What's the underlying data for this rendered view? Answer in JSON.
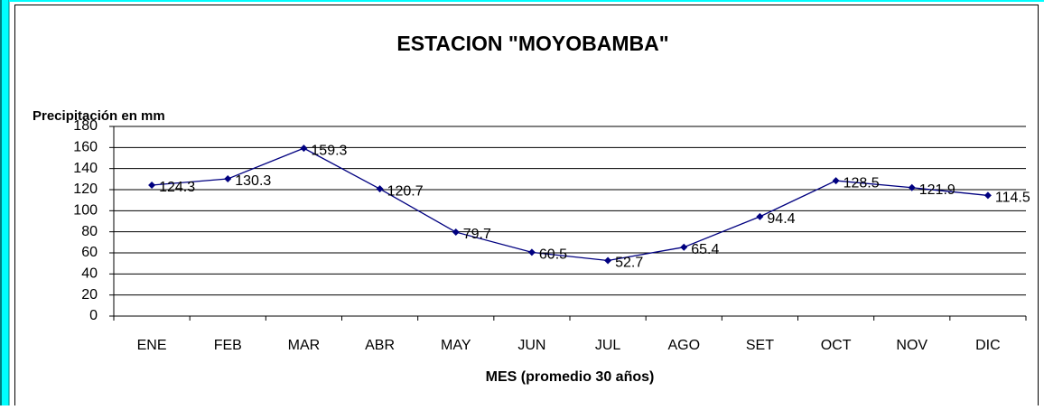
{
  "chart_data": {
    "type": "line",
    "title": "ESTACION \"MOYOBAMBA\"",
    "y_label": "Precipitación en mm",
    "x_label": "MES (promedio 30 años)",
    "categories": [
      "ENE",
      "FEB",
      "MAR",
      "ABR",
      "MAY",
      "JUN",
      "JUL",
      "AGO",
      "SET",
      "OCT",
      "NOV",
      "DIC"
    ],
    "series": [
      {
        "name": "Precipitación",
        "color": "#000080",
        "values": [
          124.3,
          130.3,
          159.3,
          120.7,
          79.7,
          60.5,
          52.7,
          65.4,
          94.4,
          128.5,
          121.9,
          114.5
        ]
      }
    ],
    "ylim": [
      0,
      180
    ],
    "yticks": [
      0,
      20,
      40,
      60,
      80,
      100,
      120,
      140,
      160,
      180
    ],
    "grid": true
  }
}
